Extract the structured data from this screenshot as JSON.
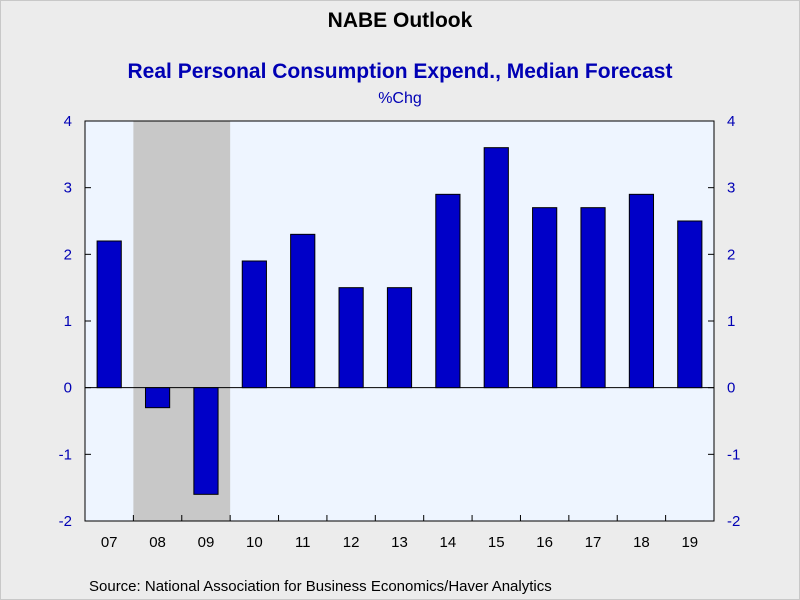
{
  "title": "NABE Outlook",
  "subtitle": "Real Personal Consumption Expend., Median Forecast",
  "unit": "%Chg",
  "source": "Source:  National Association for Business Economics/Haver Analytics",
  "colors": {
    "bar": "#0000c8",
    "plot_background": "#eef5ff",
    "recession_shade": "#c8c8c8",
    "axis_text": "#0000b4"
  },
  "chart_data": {
    "type": "bar",
    "categories": [
      "07",
      "08",
      "09",
      "10",
      "11",
      "12",
      "13",
      "14",
      "15",
      "16",
      "17",
      "18",
      "19"
    ],
    "values": [
      2.2,
      -0.3,
      -1.6,
      1.9,
      2.3,
      1.5,
      1.5,
      2.9,
      3.6,
      2.7,
      2.7,
      2.9,
      2.5
    ],
    "ylim": [
      -2,
      4
    ],
    "yticks": [
      -2,
      -1,
      0,
      1,
      2,
      3,
      4
    ],
    "y_axis_both_sides": true,
    "recession_shading": [
      "08",
      "09"
    ],
    "grid": false,
    "legend": "none"
  }
}
